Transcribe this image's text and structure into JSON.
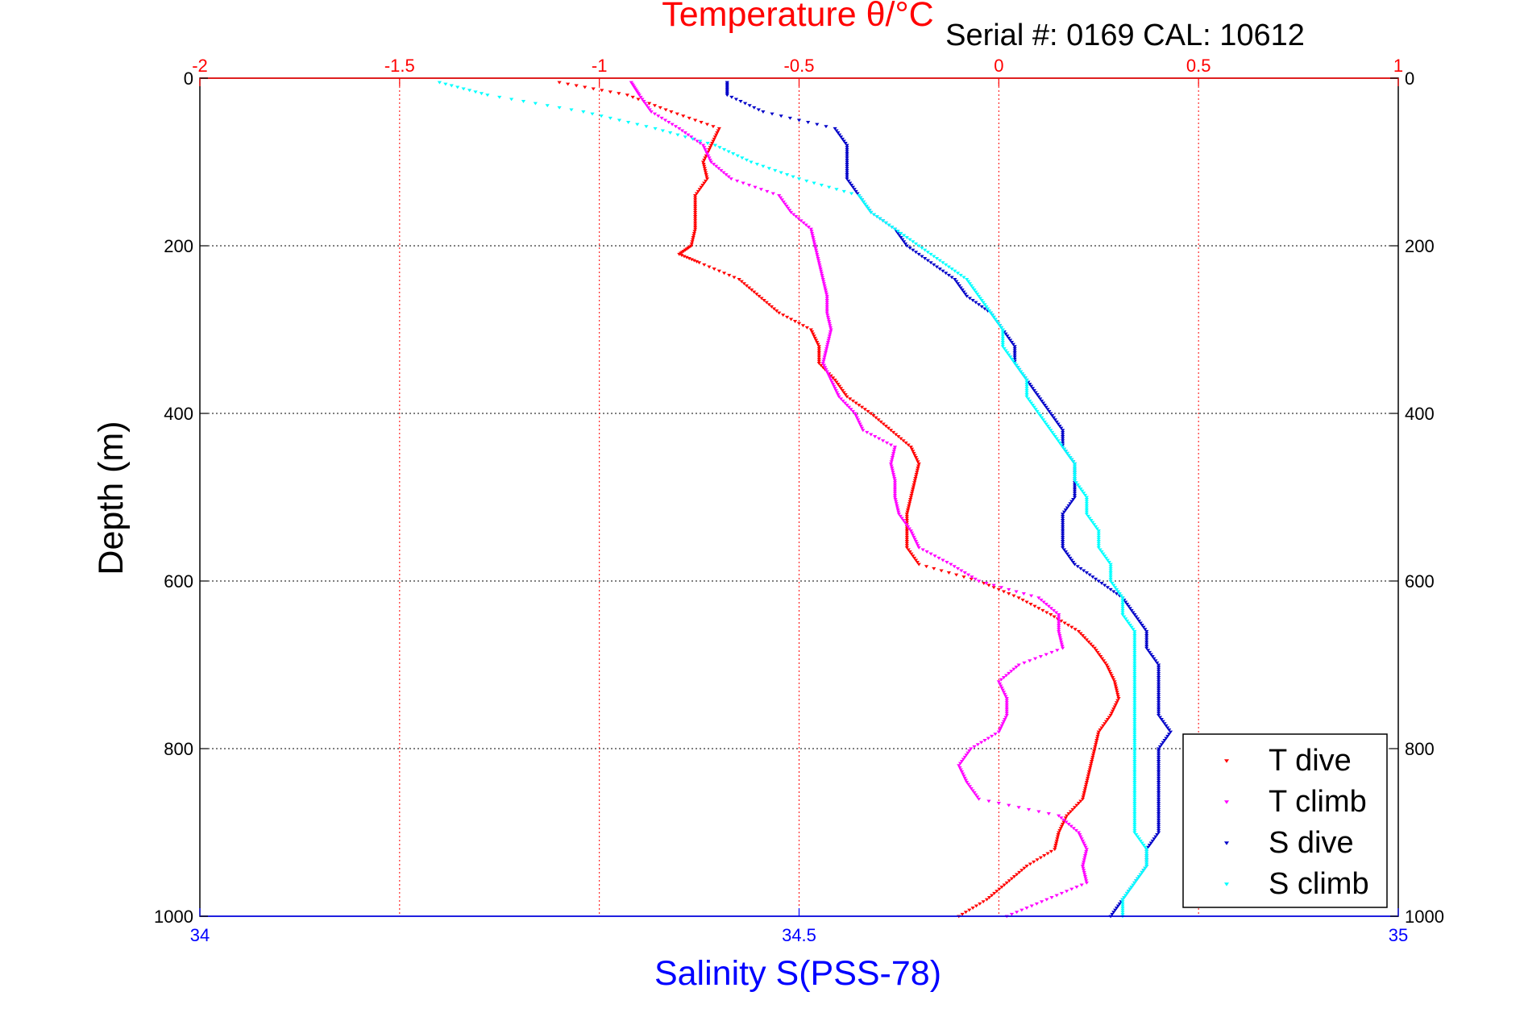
{
  "chart_data": {
    "type": "scatter",
    "title": "Temperature θ/°C",
    "serial_label": "Serial #: 0169 CAL: 10612",
    "ylabel": "Depth (m)",
    "xlabel_bottom": "Salinity S(PSS-78)",
    "xlabel_top": "Temperature θ/°C",
    "y_reversed": true,
    "ylim": [
      0,
      1000
    ],
    "y_ticks": [
      "0",
      "200",
      "400",
      "600",
      "800",
      "1000"
    ],
    "y_tick_values": [
      0,
      200,
      400,
      600,
      800,
      1000
    ],
    "x_bottom_lim": [
      34,
      35
    ],
    "x_bottom_ticks": [
      "34",
      "34.5",
      "35"
    ],
    "x_bottom_tick_values": [
      34,
      34.5,
      35
    ],
    "x_top_lim": [
      -2,
      1
    ],
    "x_top_ticks": [
      "-2",
      "-1.5",
      "-1",
      "-0.5",
      "0",
      "0.5",
      "1"
    ],
    "x_top_tick_values": [
      -2,
      -1.5,
      -1,
      -0.5,
      0,
      0.5,
      1
    ],
    "grid": true,
    "legend_position": "bottom-right",
    "colors": {
      "temperature_axis": "#ff0000",
      "salinity_axis": "#0000ff",
      "t_dive": "#ff0000",
      "t_climb": "#ff00ff",
      "s_dive": "#0000c8",
      "s_climb": "#00ffff",
      "grid": "#000000"
    },
    "series": [
      {
        "name": "T dive",
        "axis": "temperature",
        "color": "#ff0000",
        "depth": [
          5,
          20,
          40,
          60,
          80,
          100,
          120,
          140,
          160,
          180,
          200,
          210,
          220,
          240,
          260,
          280,
          300,
          320,
          340,
          360,
          380,
          400,
          420,
          440,
          460,
          480,
          500,
          520,
          540,
          560,
          580,
          600,
          620,
          640,
          660,
          680,
          700,
          720,
          740,
          760,
          780,
          800,
          820,
          840,
          860,
          880,
          900,
          920,
          940,
          960,
          980,
          1000
        ],
        "values": [
          -1.1,
          -0.93,
          -0.82,
          -0.7,
          -0.72,
          -0.74,
          -0.73,
          -0.76,
          -0.76,
          -0.76,
          -0.77,
          -0.8,
          -0.75,
          -0.65,
          -0.6,
          -0.55,
          -0.47,
          -0.45,
          -0.45,
          -0.41,
          -0.38,
          -0.32,
          -0.27,
          -0.22,
          -0.2,
          -0.21,
          -0.22,
          -0.23,
          -0.23,
          -0.23,
          -0.2,
          -0.05,
          0.05,
          0.13,
          0.2,
          0.24,
          0.27,
          0.29,
          0.3,
          0.28,
          0.25,
          0.24,
          0.23,
          0.22,
          0.21,
          0.17,
          0.15,
          0.14,
          0.07,
          0.02,
          -0.03,
          -0.1
        ]
      },
      {
        "name": "T climb",
        "axis": "temperature",
        "color": "#ff00ff",
        "depth": [
          5,
          20,
          40,
          60,
          80,
          100,
          120,
          140,
          160,
          180,
          200,
          220,
          240,
          260,
          280,
          300,
          320,
          340,
          360,
          380,
          400,
          420,
          440,
          460,
          480,
          500,
          520,
          540,
          560,
          580,
          600,
          620,
          640,
          660,
          680,
          700,
          720,
          740,
          760,
          780,
          800,
          820,
          840,
          860,
          880,
          900,
          920,
          940,
          960,
          980,
          1000
        ],
        "values": [
          -0.92,
          -0.9,
          -0.87,
          -0.8,
          -0.74,
          -0.72,
          -0.67,
          -0.55,
          -0.52,
          -0.47,
          -0.46,
          -0.45,
          -0.44,
          -0.43,
          -0.43,
          -0.42,
          -0.43,
          -0.44,
          -0.42,
          -0.4,
          -0.36,
          -0.34,
          -0.26,
          -0.27,
          -0.26,
          -0.26,
          -0.25,
          -0.22,
          -0.2,
          -0.12,
          -0.05,
          0.1,
          0.15,
          0.15,
          0.16,
          0.05,
          0.0,
          0.02,
          0.02,
          0.0,
          -0.07,
          -0.1,
          -0.08,
          -0.05,
          0.15,
          0.2,
          0.22,
          0.21,
          0.22,
          0.12,
          0.02
        ]
      },
      {
        "name": "S dive",
        "axis": "salinity",
        "color": "#0000c8",
        "depth": [
          5,
          20,
          40,
          60,
          80,
          100,
          120,
          140,
          160,
          180,
          200,
          220,
          240,
          260,
          280,
          300,
          320,
          340,
          360,
          380,
          400,
          420,
          440,
          460,
          480,
          500,
          520,
          540,
          560,
          580,
          600,
          620,
          640,
          660,
          680,
          700,
          720,
          740,
          760,
          780,
          800,
          820,
          840,
          860,
          880,
          900,
          920,
          940,
          960,
          980,
          1000
        ],
        "values": [
          34.44,
          34.44,
          34.47,
          34.53,
          34.54,
          34.54,
          34.54,
          34.55,
          34.56,
          34.58,
          34.59,
          34.61,
          34.63,
          34.64,
          34.66,
          34.67,
          34.68,
          34.68,
          34.69,
          34.7,
          34.71,
          34.72,
          34.72,
          34.73,
          34.73,
          34.73,
          34.72,
          34.72,
          34.72,
          34.73,
          34.75,
          34.77,
          34.78,
          34.79,
          34.79,
          34.8,
          34.8,
          34.8,
          34.8,
          34.81,
          34.8,
          34.8,
          34.8,
          34.8,
          34.8,
          34.8,
          34.79,
          34.79,
          34.78,
          34.77,
          34.76
        ]
      },
      {
        "name": "S climb",
        "axis": "salinity",
        "color": "#00ffff",
        "depth": [
          5,
          20,
          40,
          60,
          80,
          100,
          120,
          140,
          160,
          180,
          200,
          220,
          240,
          260,
          280,
          300,
          320,
          340,
          360,
          380,
          400,
          420,
          440,
          460,
          480,
          500,
          520,
          540,
          560,
          580,
          600,
          620,
          640,
          660,
          680,
          700,
          720,
          740,
          760,
          780,
          800,
          820,
          840,
          860,
          880,
          900,
          920,
          940,
          960,
          980,
          1000
        ],
        "values": [
          34.2,
          34.24,
          34.32,
          34.38,
          34.43,
          34.46,
          34.5,
          34.55,
          34.56,
          34.58,
          34.6,
          34.62,
          34.64,
          34.65,
          34.66,
          34.67,
          34.67,
          34.68,
          34.69,
          34.69,
          34.7,
          34.71,
          34.72,
          34.73,
          34.73,
          34.74,
          34.74,
          34.75,
          34.75,
          34.76,
          34.76,
          34.77,
          34.77,
          34.78,
          34.78,
          34.78,
          34.78,
          34.78,
          34.78,
          34.78,
          34.78,
          34.78,
          34.78,
          34.78,
          34.78,
          34.78,
          34.79,
          34.79,
          34.78,
          34.77,
          34.77
        ]
      }
    ],
    "legend": [
      "T dive",
      "T climb",
      "S dive",
      "S climb"
    ]
  }
}
